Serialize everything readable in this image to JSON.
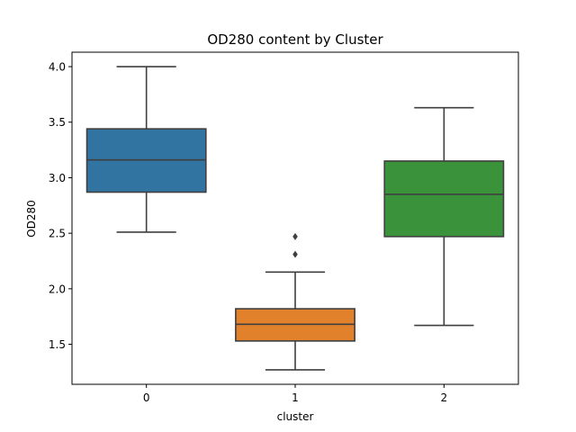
{
  "chart_data": {
    "type": "box",
    "title": "OD280 content by Cluster",
    "xlabel": "cluster",
    "ylabel": "OD280",
    "categories": [
      "0",
      "1",
      "2"
    ],
    "ylim": [
      1.14,
      4.13
    ],
    "yticks": [
      1.5,
      2.0,
      2.5,
      3.0,
      3.5,
      4.0
    ],
    "ytick_labels": [
      "1.5",
      "2.0",
      "2.5",
      "3.0",
      "3.5",
      "4.0"
    ],
    "grid": false,
    "legend": "none",
    "series": [
      {
        "category": "0",
        "color": "#3274a1",
        "whisker_low": 2.51,
        "q1": 2.87,
        "median": 3.16,
        "q3": 3.44,
        "whisker_high": 4.0,
        "outliers": []
      },
      {
        "category": "1",
        "color": "#e1812c",
        "whisker_low": 1.27,
        "q1": 1.53,
        "median": 1.68,
        "q3": 1.82,
        "whisker_high": 2.15,
        "outliers": [
          2.31,
          2.47
        ]
      },
      {
        "category": "2",
        "color": "#3a923a",
        "whisker_low": 1.67,
        "q1": 2.47,
        "median": 2.85,
        "q3": 3.15,
        "whisker_high": 3.63,
        "outliers": []
      }
    ],
    "line_color": "#3f3f3f"
  }
}
